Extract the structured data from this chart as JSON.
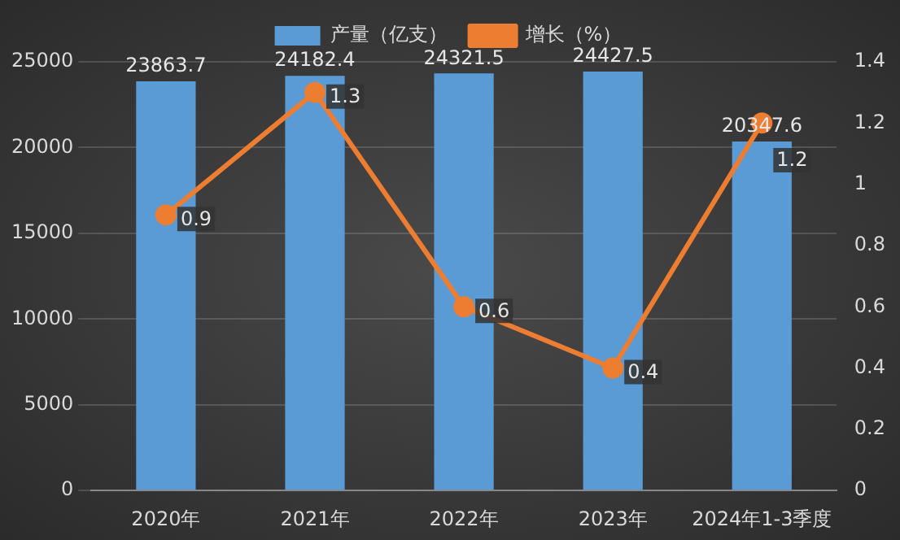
{
  "chart_data": {
    "type": "bar",
    "categories": [
      "2020年",
      "2021年",
      "2022年",
      "2023年",
      "2024年1-3季度"
    ],
    "series": [
      {
        "name": "产量（亿支）",
        "color": "#5b9bd5",
        "values": [
          23863.7,
          24182.4,
          24321.5,
          24427.5,
          20347.6
        ]
      },
      {
        "name": "增长（%）",
        "type": "line",
        "axis": "y2",
        "color": "#ed7d31",
        "values": [
          0.9,
          1.3,
          0.6,
          0.4,
          1.2
        ]
      }
    ],
    "ylim": [
      0,
      25000
    ],
    "yticks": [
      0,
      5000,
      10000,
      15000,
      20000,
      25000
    ],
    "y2lim": [
      0,
      1.4
    ],
    "y2ticks": [
      0,
      0.2,
      0.4,
      0.6,
      0.8,
      1,
      1.2,
      1.4
    ],
    "grid": "y",
    "legend": "top",
    "marker": "circle",
    "data_labels": true
  }
}
